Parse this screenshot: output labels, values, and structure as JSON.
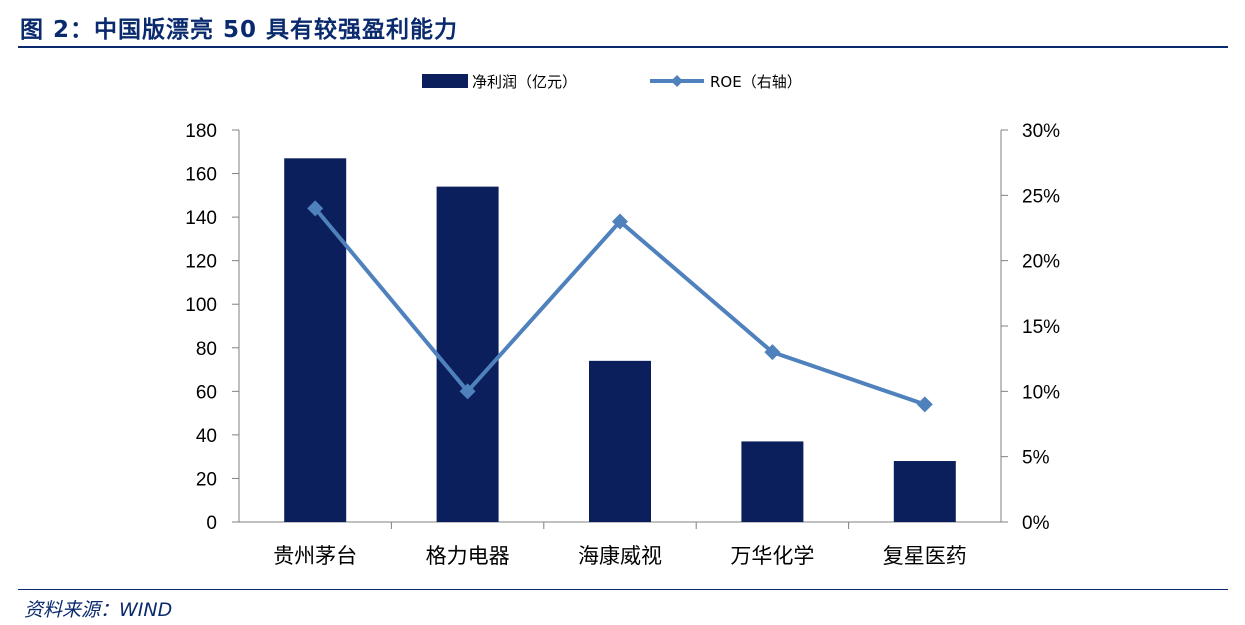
{
  "figure": {
    "title": "图 2：中国版漂亮 50 具有较强盈利能力",
    "source": "资料来源：WIND"
  },
  "chart_data": {
    "type": "bar",
    "categories": [
      "贵州茅台",
      "格力电器",
      "海康威视",
      "万华化学",
      "复星医药"
    ],
    "series": [
      {
        "name": "净利润（亿元）",
        "type": "bar",
        "axis": "left",
        "color": "#0a1f5c",
        "values": [
          167,
          154,
          74,
          37,
          28
        ]
      },
      {
        "name": "ROE（右轴）",
        "type": "line",
        "axis": "right",
        "color": "#4f81bd",
        "values": [
          24,
          10,
          23,
          13,
          9
        ]
      }
    ],
    "y_left": {
      "min": 0,
      "max": 180,
      "step": 20,
      "ticks": [
        "0",
        "20",
        "40",
        "60",
        "80",
        "100",
        "120",
        "140",
        "160",
        "180"
      ]
    },
    "y_right": {
      "min": 0,
      "max": 30,
      "step": 5,
      "ticks": [
        "0%",
        "5%",
        "10%",
        "15%",
        "20%",
        "25%",
        "30%"
      ]
    },
    "legend_position": "top-center",
    "grid": false
  }
}
